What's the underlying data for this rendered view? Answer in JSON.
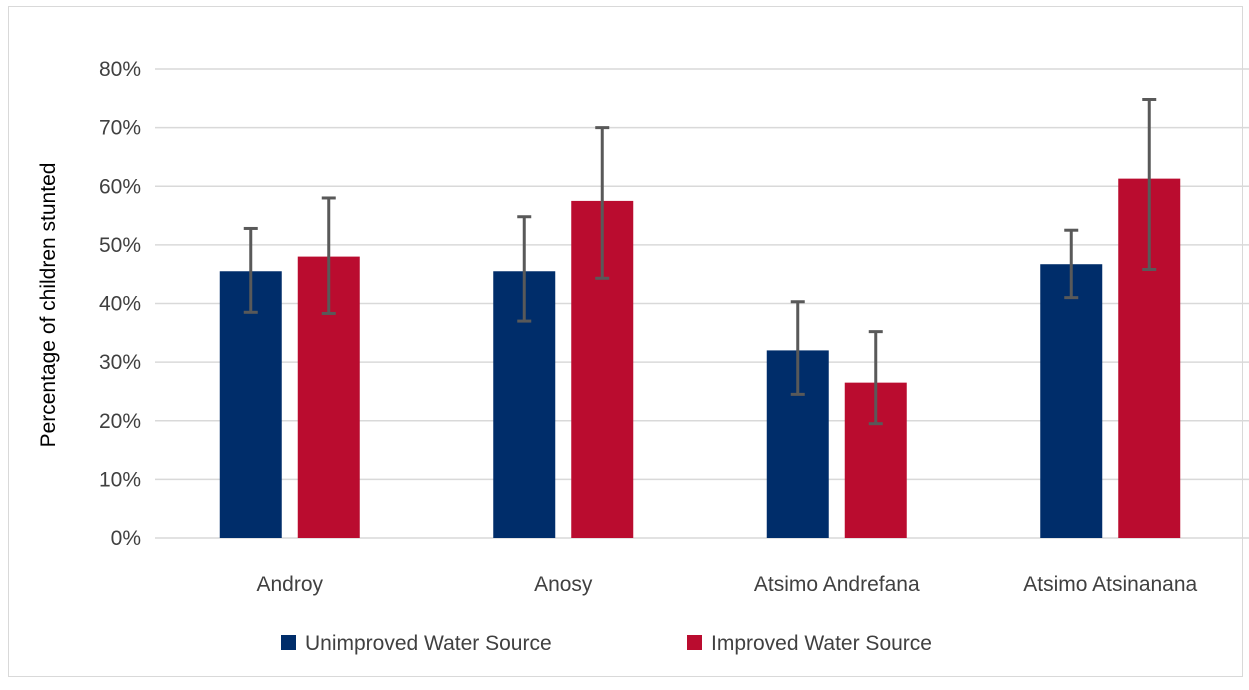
{
  "chart_data": {
    "type": "bar",
    "title": "",
    "xlabel": "",
    "ylabel": "Percentage of children stunted",
    "ylim": [
      0,
      80
    ],
    "y_ticks": [
      0,
      10,
      20,
      30,
      40,
      50,
      60,
      70,
      80
    ],
    "y_tick_suffix": "%",
    "grid": true,
    "legend_position": "bottom",
    "categories": [
      "Androy",
      "Anosy",
      "Atsimo Andrefana",
      "Atsimo Atsinanana"
    ],
    "series": [
      {
        "name": "Unimproved Water Source",
        "color": "#002d6a",
        "values": [
          45.5,
          45.5,
          32.0,
          46.7
        ],
        "error_low": [
          38.5,
          37.0,
          24.5,
          41.0
        ],
        "error_high": [
          52.8,
          54.8,
          40.3,
          52.5
        ]
      },
      {
        "name": "Improved Water Source",
        "color": "#ba0c2f",
        "values": [
          48.0,
          57.5,
          26.5,
          61.3
        ],
        "error_low": [
          38.3,
          44.3,
          19.5,
          45.8
        ],
        "error_high": [
          58.0,
          70.0,
          35.2,
          74.8
        ]
      }
    ],
    "colors": {
      "grid": "#d9d9d9",
      "error_bar": "#595959"
    }
  }
}
